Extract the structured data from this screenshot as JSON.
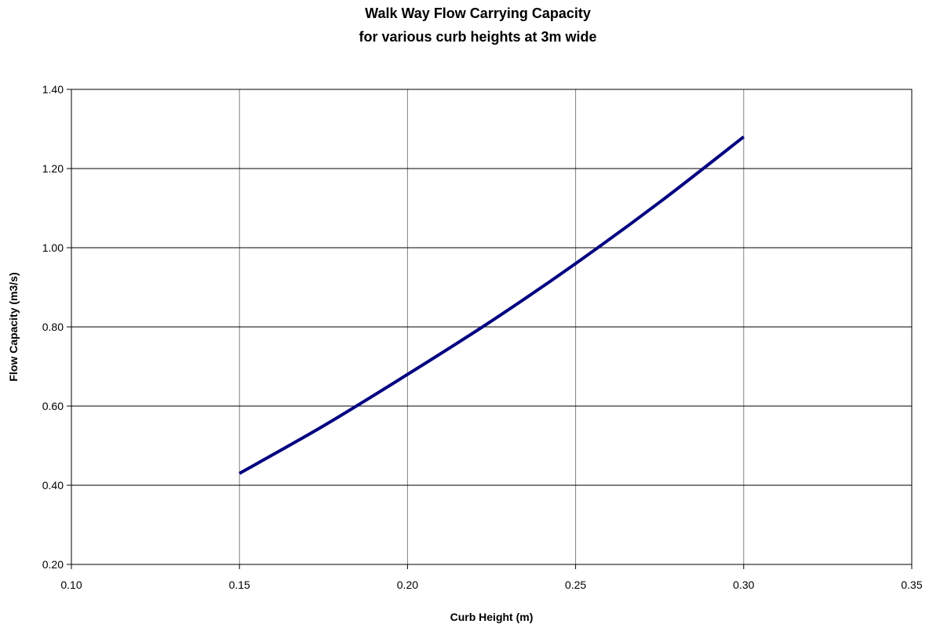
{
  "chart_data": {
    "type": "line",
    "title": "Walk Way Flow Carrying Capacity",
    "subtitle": "for various curb heights at 3m wide",
    "xlabel": "Curb Height (m)",
    "ylabel": "Flow Capacity (m3/s)",
    "xlim": [
      0.1,
      0.35
    ],
    "ylim": [
      0.2,
      1.4
    ],
    "x_ticks": [
      "0.10",
      "0.15",
      "0.20",
      "0.25",
      "0.30",
      "0.35"
    ],
    "y_ticks": [
      "0.20",
      "0.40",
      "0.60",
      "0.80",
      "1.00",
      "1.20",
      "1.40"
    ],
    "grid": true,
    "series": [
      {
        "color": "#000080",
        "x": [
          0.15,
          0.175,
          0.2,
          0.225,
          0.25,
          0.275,
          0.3
        ],
        "y": [
          0.43,
          0.55,
          0.68,
          0.815,
          0.96,
          1.115,
          1.28
        ]
      }
    ]
  }
}
